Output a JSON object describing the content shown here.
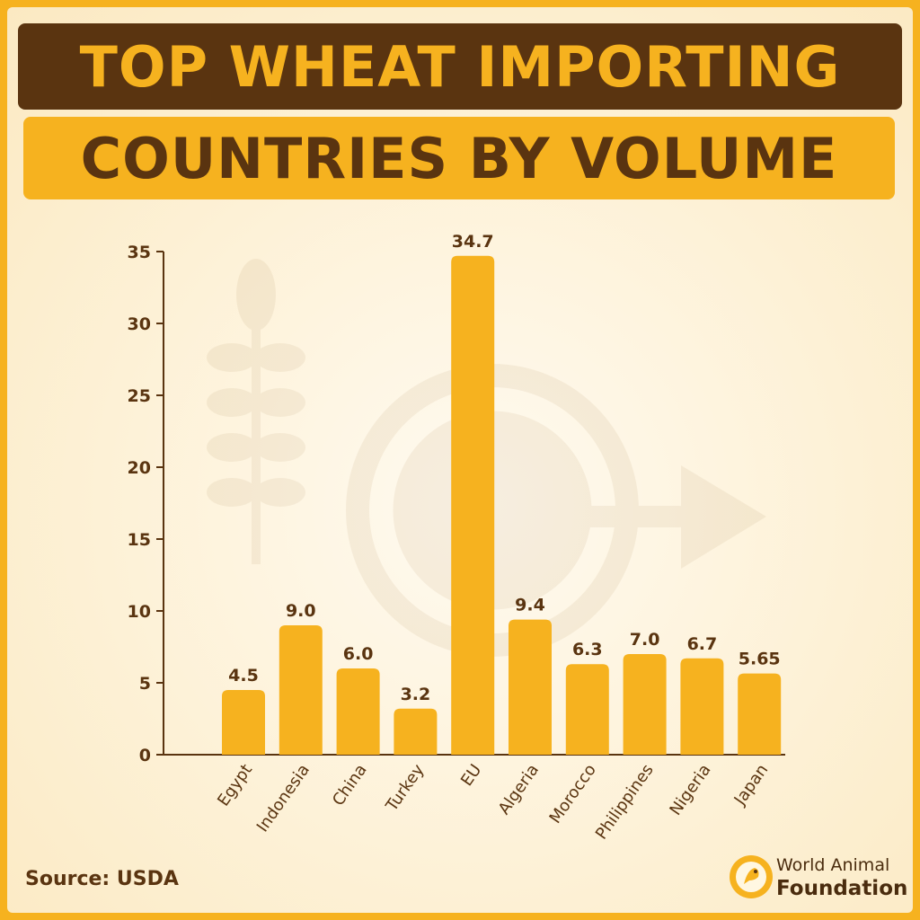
{
  "title": {
    "line1": "TOP WHEAT IMPORTING",
    "line2": "COUNTRIES BY VOLUME"
  },
  "source": "Source: USDA",
  "logo": {
    "line1": "World Animal",
    "line2": "Foundation"
  },
  "colors": {
    "bar": "#f6b21f",
    "dark": "#5a3410",
    "border": "#f6b21f"
  },
  "chart_data": {
    "type": "bar",
    "categories": [
      "Egypt",
      "Indonesia",
      "China",
      "Turkey",
      "EU",
      "Algeria",
      "Morocco",
      "Philippines",
      "Nigeria",
      "Japan"
    ],
    "values": [
      4.5,
      9.0,
      6.0,
      3.2,
      34.7,
      9.4,
      6.3,
      7.0,
      6.7,
      5.65
    ],
    "value_labels": [
      "4.5",
      "9.0",
      "6.0",
      "3.2",
      "34.7",
      "9.4",
      "6.3",
      "7.0",
      "6.7",
      "5.65"
    ],
    "title": "",
    "xlabel": "",
    "ylabel": "",
    "ylim": [
      0,
      35
    ],
    "yticks": [
      0,
      5,
      10,
      15,
      20,
      25,
      30,
      35
    ],
    "grid": false,
    "legend": "none"
  }
}
